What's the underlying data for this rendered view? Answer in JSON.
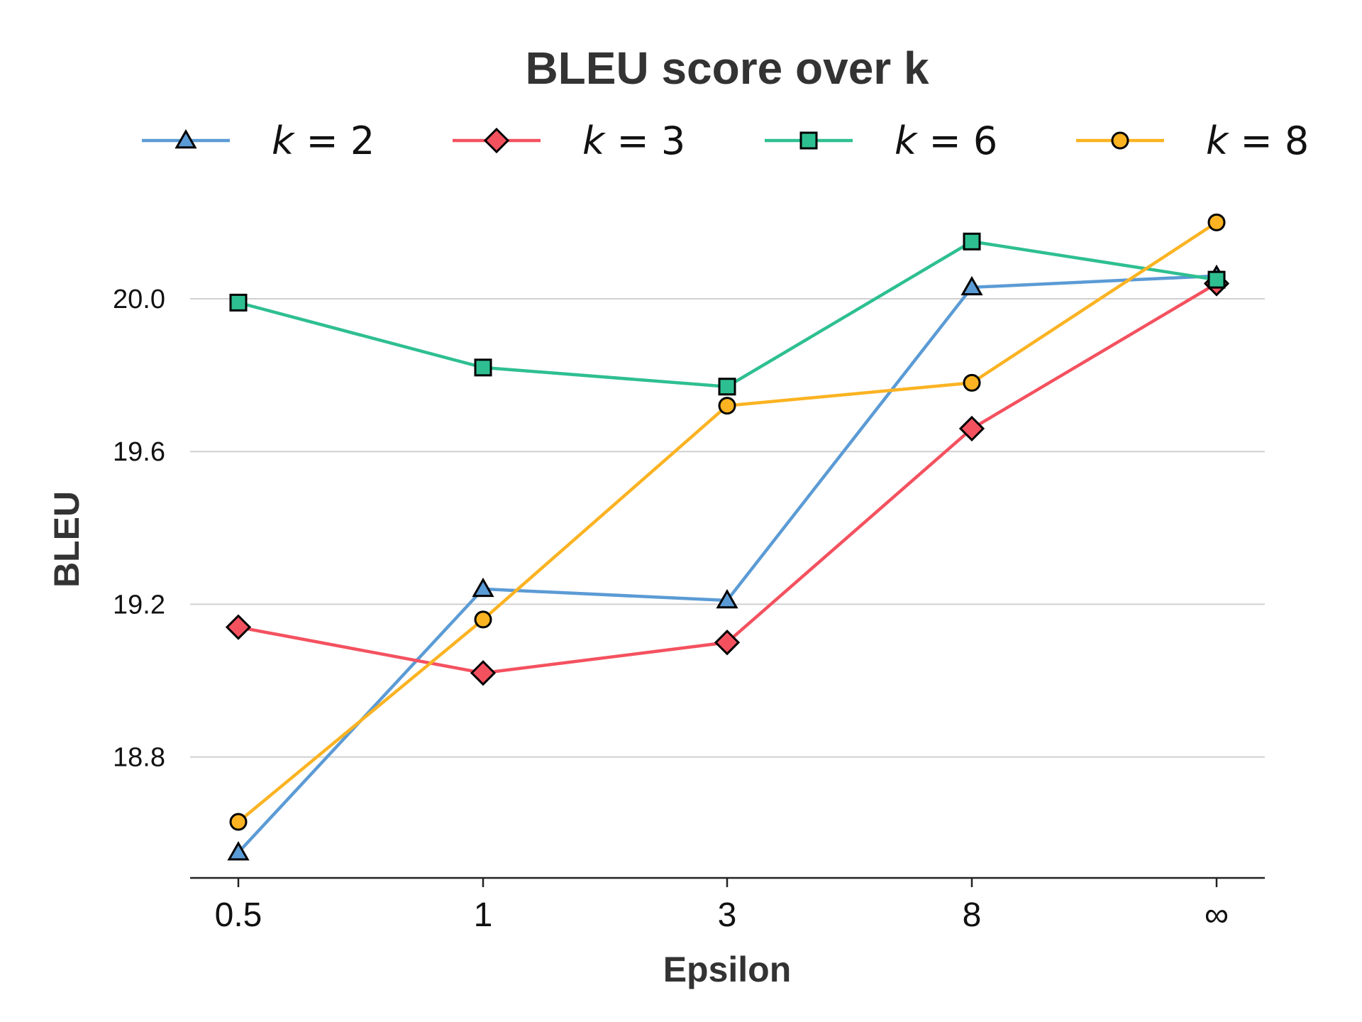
{
  "chart_data": {
    "type": "line",
    "title": "BLEU score over k",
    "xlabel": "Epsilon",
    "ylabel": "BLEU",
    "categories": [
      "0.5",
      "1",
      "3",
      "8",
      "∞"
    ],
    "yticks": [
      "18.8",
      "19.2",
      "19.6",
      "20.0"
    ],
    "ylim": [
      18.5,
      20.35
    ],
    "grid": "horizontal",
    "legend_position": "top",
    "series": [
      {
        "name": "k = 2",
        "var": "k",
        "val": "2",
        "color": "#5b9bd5",
        "marker": "triangle",
        "values": [
          18.55,
          19.24,
          19.21,
          20.03,
          20.06
        ]
      },
      {
        "name": "k = 3",
        "var": "k",
        "val": "3",
        "color": "#f4515f",
        "marker": "diamond",
        "values": [
          19.14,
          19.02,
          19.1,
          19.66,
          20.04
        ]
      },
      {
        "name": "k = 6",
        "var": "k",
        "val": "6",
        "color": "#2ebf91",
        "marker": "square",
        "values": [
          19.99,
          19.82,
          19.77,
          20.15,
          20.05
        ]
      },
      {
        "name": "k = 8",
        "var": "k",
        "val": "8",
        "color": "#fbb322",
        "marker": "circle",
        "values": [
          18.63,
          19.16,
          19.72,
          19.78,
          20.2
        ]
      }
    ]
  }
}
